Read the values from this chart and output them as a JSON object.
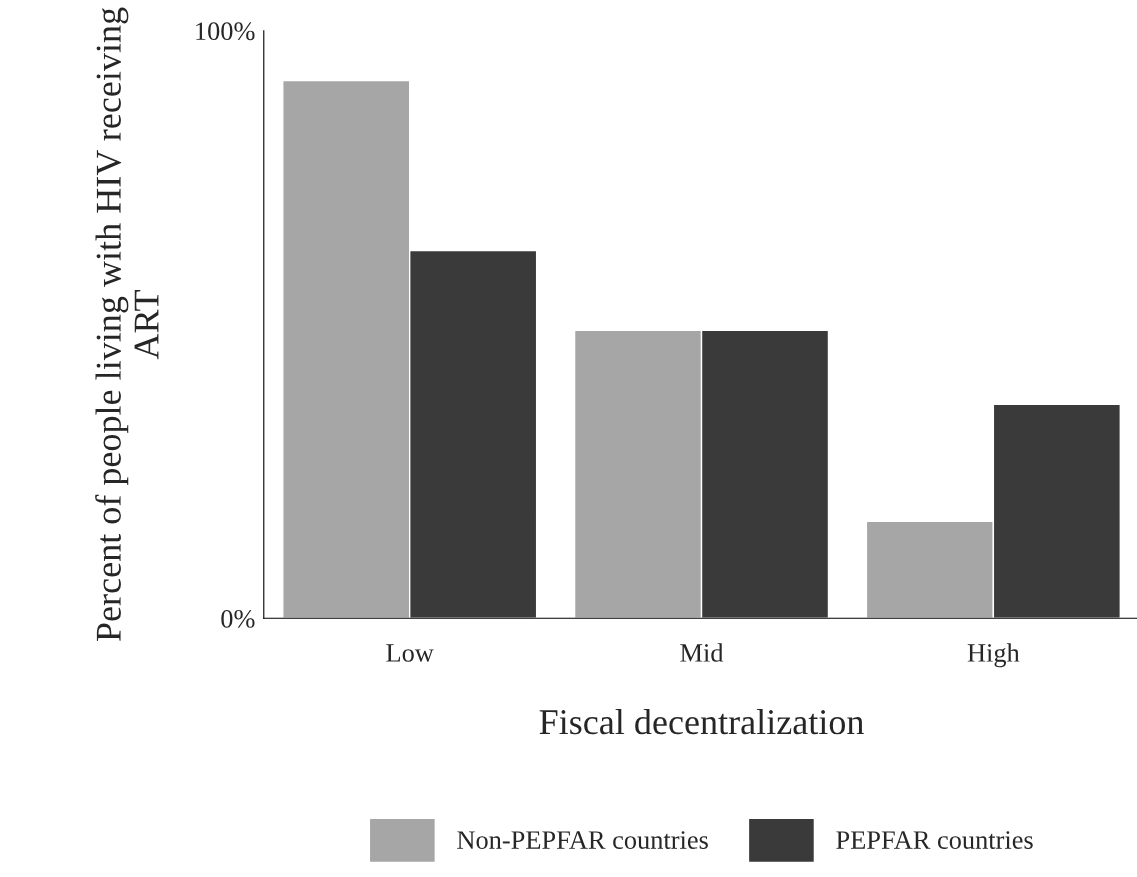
{
  "chart_data": {
    "type": "bar",
    "xlabel": "Fiscal decentralization",
    "ylabel": "Percent of people living with HIV receiving ART",
    "categories": [
      "Low",
      "Mid",
      "High"
    ],
    "series": [
      {
        "name": "Non-PEPFAR countries",
        "color": "#a6a6a6",
        "values": [
          91.5,
          49,
          16.5
        ]
      },
      {
        "name": "PEPFAR countries",
        "color": "#3a3a3a",
        "values": [
          62.6,
          49,
          36.4
        ]
      }
    ],
    "ylim": [
      0,
      100
    ],
    "yticks": [
      {
        "value": 0,
        "label": "0%"
      },
      {
        "value": 100,
        "label": "100%"
      }
    ],
    "grid": false,
    "legend": "bottom"
  }
}
